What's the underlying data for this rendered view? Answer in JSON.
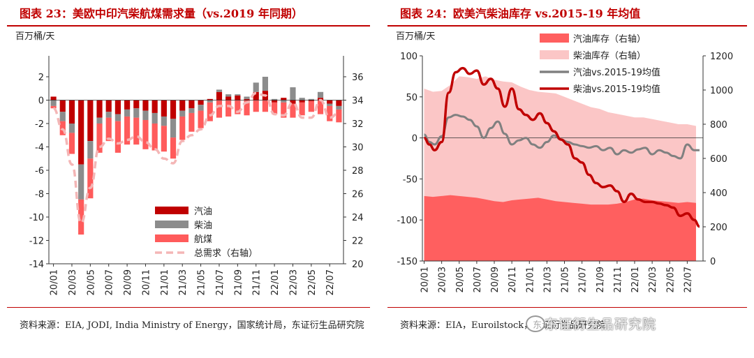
{
  "left": {
    "title": "图表 23：美欧中印汽柴航煤需求量（vs.2019 年同期）",
    "source": "资料来源：EIA, JODI, India Ministry of Energy，国家统计局，东证衍生品研究院",
    "chart_data": {
      "type": "bar",
      "unit_label": "百万桶/天",
      "x_ticks": [
        "20/01",
        "20/03",
        "20/05",
        "20/07",
        "20/09",
        "20/11",
        "21/01",
        "21/03",
        "21/05",
        "21/07",
        "21/09",
        "21/11",
        "22/01",
        "22/03",
        "22/05",
        "22/07"
      ],
      "categories": [
        "20/01",
        "20/02",
        "20/03",
        "20/04",
        "20/05",
        "20/06",
        "20/07",
        "20/08",
        "20/09",
        "20/10",
        "20/11",
        "20/12",
        "21/01",
        "21/02",
        "21/03",
        "21/04",
        "21/05",
        "21/06",
        "21/07",
        "21/08",
        "21/09",
        "21/10",
        "21/11",
        "21/12",
        "22/01",
        "22/02",
        "22/03",
        "22/04",
        "22/05",
        "22/06",
        "22/07",
        "22/08"
      ],
      "left_ylim": [
        -14,
        2
      ],
      "left_yticks": [
        2,
        0,
        -2,
        -4,
        -6,
        -8,
        -10,
        -12,
        -14
      ],
      "right_ylim": [
        20,
        36
      ],
      "right_yticks": [
        20,
        22,
        24,
        26,
        28,
        30,
        32,
        34,
        36
      ],
      "series": [
        {
          "name": "汽油",
          "color": "#c00000",
          "values": [
            0.3,
            -1.0,
            -2.0,
            -5.5,
            -3.5,
            -1.5,
            -1.0,
            -1.2,
            -0.8,
            -0.7,
            -0.9,
            -1.1,
            -1.4,
            -1.6,
            -0.9,
            -0.7,
            -0.4,
            0.1,
            0.7,
            0.3,
            0.4,
            0.1,
            0.7,
            0.8,
            -0.2,
            0.2,
            -0.3,
            -0.2,
            -0.1,
            0.2,
            -0.3,
            -0.5
          ]
        },
        {
          "name": "柴油",
          "color": "#8c8c8c",
          "values": [
            -0.5,
            -0.8,
            -0.8,
            -3.0,
            -1.5,
            -0.5,
            -0.5,
            -0.6,
            -0.6,
            -0.8,
            -0.8,
            -0.9,
            -0.8,
            -1.6,
            -0.5,
            -0.4,
            -0.5,
            -0.2,
            0.2,
            0.2,
            0.1,
            0.2,
            0.8,
            1.2,
            0.1,
            -0.2,
            1.1,
            0.2,
            0.1,
            0.5,
            -0.2,
            -0.3
          ]
        },
        {
          "name": "航煤",
          "color": "#ff5b5b",
          "values": [
            -0.2,
            -1.2,
            -1.8,
            -3.0,
            -3.4,
            -2.5,
            -2.0,
            -2.7,
            -2.4,
            -2.3,
            -2.5,
            -2.3,
            -2.2,
            -1.8,
            -2.0,
            -1.6,
            -1.5,
            -1.6,
            -1.5,
            -1.4,
            -1.2,
            -1.3,
            -1.0,
            -1.0,
            -1.0,
            -1.3,
            -1.2,
            -1.1,
            -0.9,
            -1.2,
            -1.3,
            -1.1
          ]
        }
      ],
      "line": {
        "name": "总需求（右轴）",
        "color": "#f4b6b6",
        "dashed": true,
        "values": [
          33.3,
          31.5,
          28.5,
          23.5,
          26.5,
          30.0,
          30.7,
          30.3,
          30.6,
          30.9,
          30.4,
          29.8,
          29.0,
          28.6,
          30.5,
          31.0,
          31.5,
          32.7,
          33.5,
          33.5,
          33.0,
          33.8,
          34.6,
          34.4,
          32.8,
          32.7,
          33.8,
          32.5,
          32.5,
          34.0,
          32.5,
          32.9
        ]
      },
      "legend": {
        "position": "bottom-right",
        "items": [
          "汽油",
          "柴油",
          "航煤",
          "总需求（右轴）"
        ]
      }
    }
  },
  "right": {
    "title": "图表 24：欧美汽柴油库存 vs.2015-19 年均值",
    "source": "资料来源：EIA，Euroilstock，东证衍生品研究院",
    "watermark": "东证衍生品研究院",
    "chart_data": {
      "type": "area",
      "unit_label": "百万桶/天",
      "x_ticks": [
        "20/01",
        "20/03",
        "20/05",
        "20/07",
        "20/09",
        "20/11",
        "21/01",
        "21/03",
        "21/05",
        "21/07",
        "21/09",
        "21/11",
        "22/01",
        "22/03",
        "22/05",
        "22/07"
      ],
      "left_ylim": [
        -150,
        100
      ],
      "left_yticks": [
        100,
        50,
        0,
        -50,
        -100,
        -150
      ],
      "right_ylim": [
        0,
        1200
      ],
      "right_yticks": [
        1200,
        1000,
        800,
        600,
        400,
        200,
        0
      ],
      "area_series": [
        {
          "name": "柴油库存（右轴）",
          "color": "#fbc6c6",
          "x": [
            0,
            0.5,
            1,
            1.5,
            2,
            2.5,
            3,
            3.5,
            4,
            4.5,
            5,
            5.5,
            6,
            6.5,
            7,
            7.5,
            8,
            8.5,
            9,
            9.5,
            10,
            10.5,
            11,
            11.5,
            12,
            12.5,
            13,
            13.5,
            14,
            14.5,
            15,
            15.5
          ],
          "values": [
            1008,
            990,
            995,
            1030,
            1080,
            1075,
            1065,
            1080,
            1060,
            1050,
            1045,
            1020,
            1000,
            990,
            985,
            980,
            960,
            940,
            920,
            900,
            890,
            870,
            860,
            850,
            840,
            840,
            830,
            820,
            810,
            800,
            800,
            790
          ]
        },
        {
          "name": "汽油库存（右轴）",
          "color": "#ff5f5f",
          "x": [
            0,
            0.5,
            1,
            1.5,
            2,
            2.5,
            3,
            3.5,
            4,
            4.5,
            5,
            5.5,
            6,
            6.5,
            7,
            7.5,
            8,
            8.5,
            9,
            9.5,
            10,
            10.5,
            11,
            11.5,
            12,
            12.5,
            13,
            13.5,
            14,
            14.5,
            15,
            15.5
          ],
          "values": [
            380,
            375,
            380,
            385,
            380,
            375,
            370,
            360,
            350,
            345,
            355,
            360,
            365,
            370,
            360,
            350,
            345,
            340,
            335,
            330,
            330,
            330,
            335,
            345,
            360,
            365,
            355,
            350,
            345,
            340,
            345,
            340
          ]
        }
      ],
      "line_series": [
        {
          "name": "汽油vs.2015-19均值",
          "color": "#808080",
          "x": [
            0,
            0.3,
            0.6,
            1.0,
            1.4,
            1.8,
            2.2,
            2.6,
            3.0,
            3.4,
            3.8,
            4.2,
            4.6,
            5.0,
            5.4,
            5.8,
            6.2,
            6.6,
            7.0,
            7.4,
            7.8,
            8.2,
            8.6,
            9.0,
            9.4,
            9.8,
            10.2,
            10.6,
            11.0,
            11.4,
            11.8,
            12.2,
            12.6,
            13.0,
            13.4,
            13.8,
            14.2,
            14.6,
            15.0,
            15.4,
            15.7
          ],
          "values": [
            4,
            -5,
            -8,
            2,
            25,
            28,
            26,
            22,
            14,
            0,
            12,
            20,
            5,
            -8,
            -3,
            0,
            -8,
            -12,
            -5,
            3,
            -2,
            -5,
            -8,
            -10,
            -12,
            -10,
            -15,
            -12,
            -20,
            -15,
            -18,
            -14,
            -12,
            -20,
            -15,
            -18,
            -22,
            -25,
            -8,
            -15,
            -15
          ]
        },
        {
          "name": "柴油vs.2015-19均值",
          "color": "#c00000",
          "x": [
            0,
            0.3,
            0.6,
            1.0,
            1.4,
            1.8,
            2.2,
            2.6,
            3.0,
            3.4,
            3.8,
            4.2,
            4.6,
            5.0,
            5.4,
            5.8,
            6.2,
            6.6,
            7.0,
            7.4,
            7.8,
            8.2,
            8.6,
            9.0,
            9.4,
            9.8,
            10.2,
            10.6,
            11.0,
            11.4,
            11.8,
            12.2,
            12.6,
            13.0,
            13.4,
            13.8,
            14.2,
            14.6,
            15.0,
            15.4,
            15.7
          ],
          "values": [
            0,
            -8,
            -15,
            -5,
            55,
            80,
            85,
            78,
            82,
            65,
            72,
            60,
            38,
            60,
            35,
            28,
            22,
            30,
            18,
            8,
            -2,
            -8,
            -25,
            -30,
            -45,
            -55,
            -60,
            -58,
            -65,
            -78,
            -68,
            -75,
            -78,
            -78,
            -80,
            -82,
            -85,
            -95,
            -92,
            -100,
            -108
          ]
        }
      ],
      "legend": {
        "position": "top-right",
        "items": [
          "汽油库存（右轴）",
          "柴油库存（右轴）",
          "汽油vs.2015-19均值",
          "柴油vs.2015-19均值"
        ]
      }
    }
  }
}
